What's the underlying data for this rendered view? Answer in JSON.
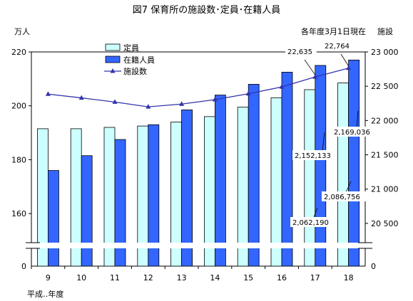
{
  "chart_data": {
    "type": "bar",
    "title": "図7  保育所の施設数･定員･在籍人員",
    "note": "各年度3月1日現在",
    "xlabel": "平成‥年度",
    "ylabel_left": "万人",
    "ylabel_right": "施設",
    "categories": [
      "9",
      "10",
      "11",
      "12",
      "13",
      "14",
      "15",
      "16",
      "17",
      "18"
    ],
    "y_left": {
      "range": [
        150,
        220
      ],
      "ticks": [
        "160",
        "180",
        "200",
        "220"
      ],
      "broken_axis_zero": "0"
    },
    "y_right": {
      "range": [
        20250,
        23000
      ],
      "ticks": [
        "20 500",
        "21 000",
        "21 500",
        "22 000",
        "22 500",
        "23 000"
      ],
      "broken_axis_zero": "0"
    },
    "legend_placement": "top-left",
    "series": [
      {
        "name": "定員",
        "axis": "left",
        "color": "#ccffff",
        "values": [
          191.5,
          191.5,
          192,
          192.5,
          194,
          196,
          199.5,
          203,
          206,
          208.5
        ]
      },
      {
        "name": "在籍人員",
        "axis": "left",
        "color": "#3366ff",
        "values": [
          176,
          181.5,
          187.5,
          193,
          198.5,
          204,
          208,
          212.5,
          215,
          217
        ]
      },
      {
        "name": "施設数",
        "axis": "right",
        "color": "#3333aa",
        "type": "line",
        "values": [
          22385,
          22330,
          22270,
          22200,
          22240,
          22305,
          22390,
          22490,
          22635,
          22764
        ]
      }
    ],
    "annotations": [
      "22,635",
      "22,764",
      "2,152,133",
      "2,169,036",
      "2,062,190",
      "2,086,756"
    ]
  }
}
